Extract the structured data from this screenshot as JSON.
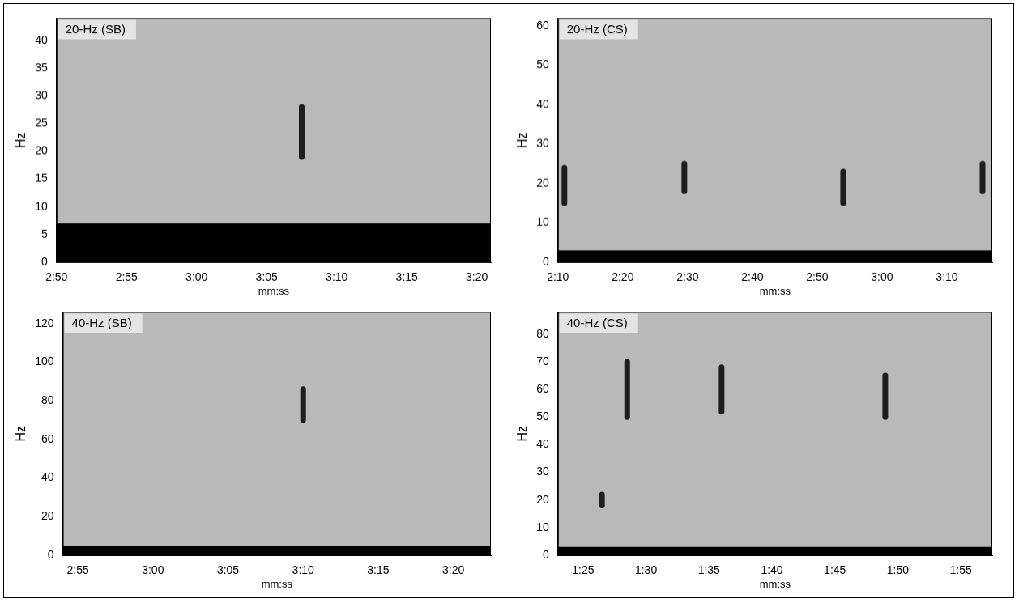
{
  "chart_data": [
    {
      "type": "spectrogram",
      "title": "20-Hz (SB)",
      "x_label": "mm:ss",
      "y_label": "Hz",
      "xlim": [
        170,
        201
      ],
      "xticks": [
        {
          "value": 170,
          "label": "2:50"
        },
        {
          "value": 175,
          "label": "2:55"
        },
        {
          "value": 180,
          "label": "3:00"
        },
        {
          "value": 185,
          "label": "3:05"
        },
        {
          "value": 190,
          "label": "3:10"
        },
        {
          "value": 195,
          "label": "3:15"
        },
        {
          "value": 200,
          "label": "3:20"
        }
      ],
      "ylim": [
        0,
        44
      ],
      "yticks": [
        0,
        5,
        10,
        15,
        20,
        25,
        30,
        35,
        40
      ],
      "grid": false,
      "color": "#1e1e1e",
      "low_band": [
        0,
        7
      ],
      "calls": [
        {
          "time": 187.5,
          "freq": [
            19,
            28
          ]
        }
      ]
    },
    {
      "type": "spectrogram",
      "title": "20-Hz (CS)",
      "x_label": "mm:ss",
      "y_label": "Hz",
      "xlim": [
        130,
        197
      ],
      "xticks": [
        {
          "value": 130,
          "label": "2:10"
        },
        {
          "value": 140,
          "label": "2:20"
        },
        {
          "value": 150,
          "label": "2:30"
        },
        {
          "value": 160,
          "label": "2:40"
        },
        {
          "value": 170,
          "label": "2:50"
        },
        {
          "value": 180,
          "label": "3:00"
        },
        {
          "value": 190,
          "label": "3:10"
        }
      ],
      "ylim": [
        0,
        62
      ],
      "yticks": [
        0,
        10,
        20,
        30,
        40,
        50,
        60
      ],
      "grid": false,
      "color": "#1e1e1e",
      "low_band": [
        0,
        3
      ],
      "calls": [
        {
          "time": 131,
          "freq": [
            15,
            24
          ]
        },
        {
          "time": 149.5,
          "freq": [
            18,
            25
          ]
        },
        {
          "time": 174,
          "freq": [
            15,
            23
          ]
        },
        {
          "time": 195.5,
          "freq": [
            18,
            25
          ]
        }
      ]
    },
    {
      "type": "spectrogram",
      "title": "40-Hz (SB)",
      "x_label": "mm:ss",
      "y_label": "Hz",
      "xlim": [
        174,
        202.5
      ],
      "xticks": [
        {
          "value": 175,
          "label": "2:55"
        },
        {
          "value": 180,
          "label": "3:00"
        },
        {
          "value": 185,
          "label": "3:05"
        },
        {
          "value": 190,
          "label": "3:10"
        },
        {
          "value": 195,
          "label": "3:15"
        },
        {
          "value": 200,
          "label": "3:20"
        }
      ],
      "ylim": [
        0,
        126
      ],
      "yticks": [
        0,
        20,
        40,
        60,
        80,
        100,
        120
      ],
      "grid": false,
      "color": "#1e1e1e",
      "low_band": [
        0,
        5
      ],
      "calls": [
        {
          "time": 190,
          "freq": [
            70,
            86
          ]
        }
      ]
    },
    {
      "type": "spectrogram",
      "title": "40-Hz (CS)",
      "x_label": "mm:ss",
      "y_label": "Hz",
      "xlim": [
        83,
        117.5
      ],
      "xticks": [
        {
          "value": 85,
          "label": "1:25"
        },
        {
          "value": 90,
          "label": "1:30"
        },
        {
          "value": 95,
          "label": "1:35"
        },
        {
          "value": 100,
          "label": "1:40"
        },
        {
          "value": 105,
          "label": "1:45"
        },
        {
          "value": 110,
          "label": "1:50"
        },
        {
          "value": 115,
          "label": "1:55"
        }
      ],
      "ylim": [
        0,
        88
      ],
      "yticks": [
        0,
        10,
        20,
        30,
        40,
        50,
        60,
        70,
        80
      ],
      "grid": false,
      "color": "#1e1e1e",
      "low_band": [
        0,
        3
      ],
      "calls": [
        {
          "time": 86.5,
          "freq": [
            18,
            22
          ]
        },
        {
          "time": 88.5,
          "freq": [
            50,
            70
          ]
        },
        {
          "time": 96,
          "freq": [
            52,
            68
          ]
        },
        {
          "time": 109,
          "freq": [
            50,
            65
          ]
        }
      ]
    }
  ]
}
